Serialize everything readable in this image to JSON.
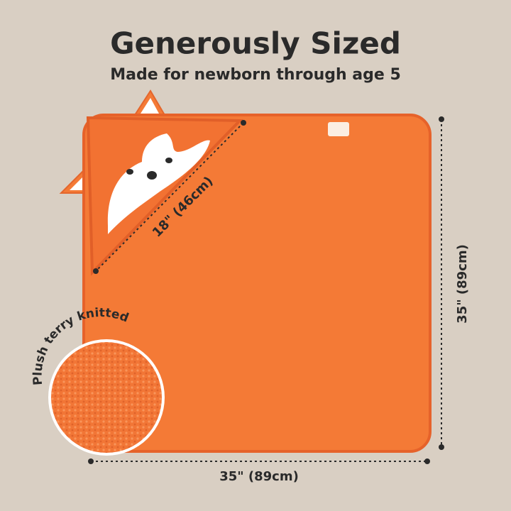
{
  "header": {
    "title": "Generously Sized",
    "subtitle": "Made for newborn through age 5"
  },
  "dimensions": {
    "hood": "18\" (46cm)",
    "height": "35\" (89cm)",
    "width": "35\" (89cm)"
  },
  "callout": {
    "label": "Plush terry knitted"
  }
}
